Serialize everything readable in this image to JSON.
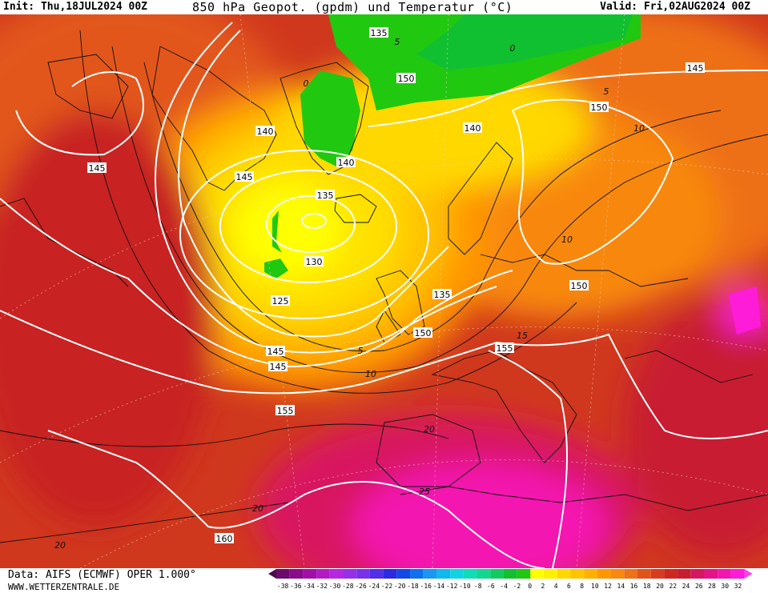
{
  "header": {
    "init": "Init: Thu,18JUL2024 00Z",
    "title": "850 hPa Geopot. (gpdm) und Temperatur (°C)",
    "valid": "Valid: Fri,02AUG2024 00Z"
  },
  "footer": {
    "data_source": "Data: AIFS (ECMWF) OPER 1.000°",
    "website": "WWW.WETTERZENTRALE.DE"
  },
  "legend": {
    "labels": [
      "-38",
      "-36",
      "-34",
      "-32",
      "-30",
      "-28",
      "-26",
      "-24",
      "-22",
      "-20",
      "-18",
      "-16",
      "-14",
      "-12",
      "-10",
      "-8",
      "-6",
      "-4",
      "-2",
      "0",
      "2",
      "4",
      "6",
      "8",
      "10",
      "12",
      "14",
      "16",
      "18",
      "20",
      "22",
      "24",
      "26",
      "28",
      "30",
      "32"
    ],
    "colors": [
      "#4a0a4a",
      "#6a0a6a",
      "#8a0c8a",
      "#a010a8",
      "#b41ac4",
      "#b428e0",
      "#9630e6",
      "#7832ea",
      "#5030e8",
      "#2c2ae0",
      "#1448e6",
      "#1070ee",
      "#1898f0",
      "#10b8f0",
      "#10d4e0",
      "#10dcb8",
      "#10d890",
      "#10cc60",
      "#10c030",
      "#20c810",
      "#ffff00",
      "#fff000",
      "#ffd800",
      "#ffc400",
      "#ffb000",
      "#ff9800",
      "#f88810",
      "#ee7018",
      "#e0541c",
      "#d83c1e",
      "#cc2820",
      "#c81c30",
      "#d41860",
      "#e41488",
      "#f414b0",
      "#ff1cd8",
      "#ff40ec"
    ]
  },
  "contour_labels": {
    "geopotential": [
      "135",
      "140",
      "145",
      "150",
      "140",
      "145",
      "135",
      "130",
      "125",
      "135",
      "145",
      "140",
      "150",
      "150",
      "145",
      "155",
      "155",
      "160",
      "145",
      "150"
    ],
    "temperature": [
      "0",
      "5",
      "5",
      "10",
      "10",
      "15",
      "10",
      "5",
      "20",
      "25",
      "20",
      "20",
      "0"
    ]
  }
}
